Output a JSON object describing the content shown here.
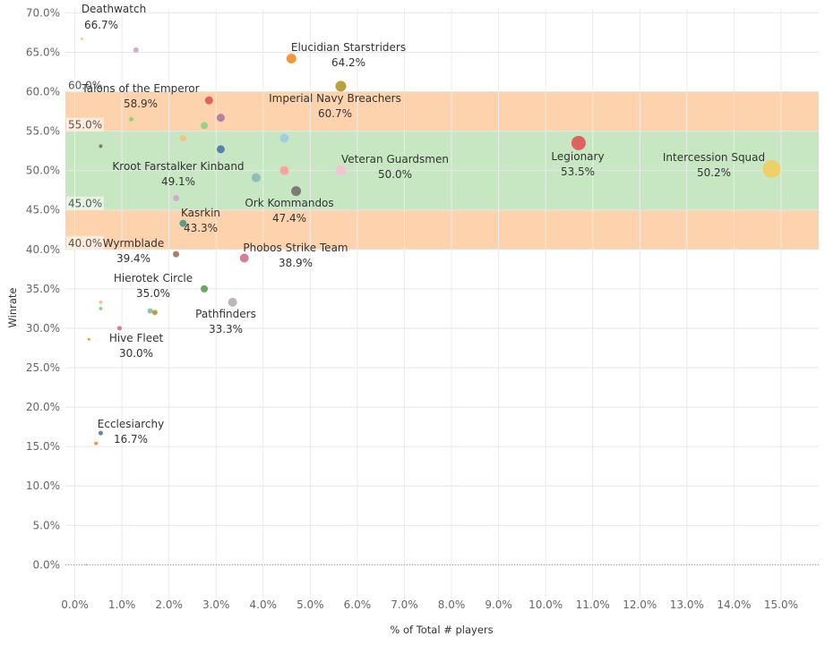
{
  "chart_data": {
    "type": "scatter",
    "xlabel": "% of Total # players",
    "ylabel": "Winrate",
    "xlim": [
      -0.2,
      15.8
    ],
    "ylim": [
      -4.5,
      70.5
    ],
    "x_ticks": [
      0,
      1,
      2,
      3,
      4,
      5,
      6,
      7,
      8,
      9,
      10,
      11,
      12,
      13,
      14,
      15
    ],
    "y_ticks": [
      0,
      5,
      10,
      15,
      20,
      25,
      30,
      35,
      40,
      45,
      50,
      55,
      60,
      65,
      70
    ],
    "x_tick_labels": [
      "0.0%",
      "1.0%",
      "2.0%",
      "3.0%",
      "4.0%",
      "5.0%",
      "6.0%",
      "7.0%",
      "8.0%",
      "9.0%",
      "10.0%",
      "11.0%",
      "12.0%",
      "13.0%",
      "14.0%",
      "15.0%"
    ],
    "y_tick_labels": [
      "0.0%",
      "5.0%",
      "10.0%",
      "15.0%",
      "20.0%",
      "25.0%",
      "30.0%",
      "35.0%",
      "40.0%",
      "45.0%",
      "50.0%",
      "55.0%",
      "60.0%",
      "65.0%",
      "70.0%"
    ],
    "grid": true,
    "bands": [
      {
        "from": 40,
        "to": 45,
        "color": "#fdd3ad"
      },
      {
        "from": 45,
        "to": 55,
        "color": "#c6e7c1"
      },
      {
        "from": 55,
        "to": 60,
        "color": "#fdd3ad"
      }
    ],
    "band_labels": [
      {
        "value": 60,
        "text": "60.0%"
      },
      {
        "value": 55,
        "text": "55.0%"
      },
      {
        "value": 45,
        "text": "45.0%"
      },
      {
        "value": 40,
        "text": "40.0%"
      }
    ],
    "zero_line": 0,
    "points": [
      {
        "x": 14.8,
        "y": 50.2,
        "size": 10,
        "color": "#f1ce63",
        "name": "Intercession Squad",
        "value_label": "50.2%"
      },
      {
        "x": 10.7,
        "y": 53.5,
        "size": 8,
        "color": "#e15759",
        "name": "Legionary",
        "value_label": "53.5%"
      },
      {
        "x": 5.65,
        "y": 50.0,
        "size": 5.5,
        "color": "#fabfd2",
        "name": "Veteran Guardsmen",
        "value_label": "50.0%"
      },
      {
        "x": 5.65,
        "y": 60.7,
        "size": 6,
        "color": "#b6992d",
        "name": "Imperial Navy Breachers",
        "value_label": "60.7%"
      },
      {
        "x": 4.6,
        "y": 64.2,
        "size": 5.5,
        "color": "#f28e2b",
        "name": "Elucidian Starstriders",
        "value_label": "64.2%"
      },
      {
        "x": 4.7,
        "y": 47.4,
        "size": 5.5,
        "color": "#79706e",
        "name": "Ork Kommandos",
        "value_label": "47.4%"
      },
      {
        "x": 4.45,
        "y": 50.0,
        "size": 5,
        "color": "#ff9d9a",
        "name": "",
        "value_label": ""
      },
      {
        "x": 4.45,
        "y": 54.1,
        "size": 5,
        "color": "#a0cbe8",
        "name": "",
        "value_label": ""
      },
      {
        "x": 3.85,
        "y": 49.1,
        "size": 5,
        "color": "#86bcb6",
        "name": "Kroot Farstalker Kinband",
        "value_label": "49.1%"
      },
      {
        "x": 3.6,
        "y": 38.9,
        "size": 5,
        "color": "#d37295",
        "name": "Phobos Strike Team",
        "value_label": "38.9%"
      },
      {
        "x": 3.35,
        "y": 33.3,
        "size": 5,
        "color": "#bab0ac",
        "name": "Pathfinders",
        "value_label": "33.3%"
      },
      {
        "x": 3.1,
        "y": 52.7,
        "size": 4.5,
        "color": "#4e79a7",
        "name": "",
        "value_label": ""
      },
      {
        "x": 3.1,
        "y": 56.7,
        "size": 4.5,
        "color": "#b07aa1",
        "name": "",
        "value_label": ""
      },
      {
        "x": 2.85,
        "y": 58.9,
        "size": 4.5,
        "color": "#e15759",
        "name": "Talons of the Emperor",
        "value_label": "58.9%"
      },
      {
        "x": 2.75,
        "y": 55.7,
        "size": 4,
        "color": "#8cd17d",
        "name": "",
        "value_label": ""
      },
      {
        "x": 2.75,
        "y": 35.0,
        "size": 4,
        "color": "#59a14f",
        "name": "Hierotek Circle",
        "value_label": "35.0%"
      },
      {
        "x": 2.3,
        "y": 43.3,
        "size": 4,
        "color": "#499894",
        "name": "Kasrkin",
        "value_label": "43.3%"
      },
      {
        "x": 2.3,
        "y": 54.1,
        "size": 3.5,
        "color": "#ffbe7d",
        "name": "",
        "value_label": ""
      },
      {
        "x": 2.15,
        "y": 46.5,
        "size": 3.5,
        "color": "#d4a6c8",
        "name": "",
        "value_label": ""
      },
      {
        "x": 2.15,
        "y": 39.4,
        "size": 3.5,
        "color": "#9d7660",
        "name": "Wyrmblade",
        "value_label": "39.4%"
      },
      {
        "x": 1.7,
        "y": 32.0,
        "size": 3,
        "color": "#b6992d",
        "name": "",
        "value_label": ""
      },
      {
        "x": 1.6,
        "y": 32.2,
        "size": 3,
        "color": "#86bcb6",
        "name": "",
        "value_label": ""
      },
      {
        "x": 1.3,
        "y": 65.3,
        "size": 3,
        "color": "#d4a6c8",
        "name": "",
        "value_label": ""
      },
      {
        "x": 1.2,
        "y": 56.5,
        "size": 2.5,
        "color": "#8cd17d",
        "name": "",
        "value_label": ""
      },
      {
        "x": 0.95,
        "y": 30.0,
        "size": 2.5,
        "color": "#d37295",
        "name": "Hive Fleet",
        "value_label": "30.0%"
      },
      {
        "x": 0.55,
        "y": 16.7,
        "size": 2.5,
        "color": "#4e79a7",
        "name": "Ecclesiarchy",
        "value_label": "16.7%"
      },
      {
        "x": 0.45,
        "y": 15.4,
        "size": 2,
        "color": "#f28e2b",
        "name": "",
        "value_label": ""
      },
      {
        "x": 0.55,
        "y": 53.1,
        "size": 2,
        "color": "#79706e",
        "name": "",
        "value_label": ""
      },
      {
        "x": 0.55,
        "y": 33.3,
        "size": 2,
        "color": "#ffbe7d",
        "name": "",
        "value_label": ""
      },
      {
        "x": 0.55,
        "y": 32.5,
        "size": 2,
        "color": "#8cd17d",
        "name": "",
        "value_label": ""
      },
      {
        "x": 0.3,
        "y": 28.6,
        "size": 1.5,
        "color": "#f28e2b",
        "name": "",
        "value_label": ""
      },
      {
        "x": 0.15,
        "y": 66.7,
        "size": 1.5,
        "color": "#ffbe7d",
        "name": "Deathwatch",
        "value_label": "66.7%"
      },
      {
        "x": 0.25,
        "y": 0.0,
        "size": 1,
        "color": "#86bcb6",
        "name": "",
        "value_label": ""
      }
    ]
  }
}
